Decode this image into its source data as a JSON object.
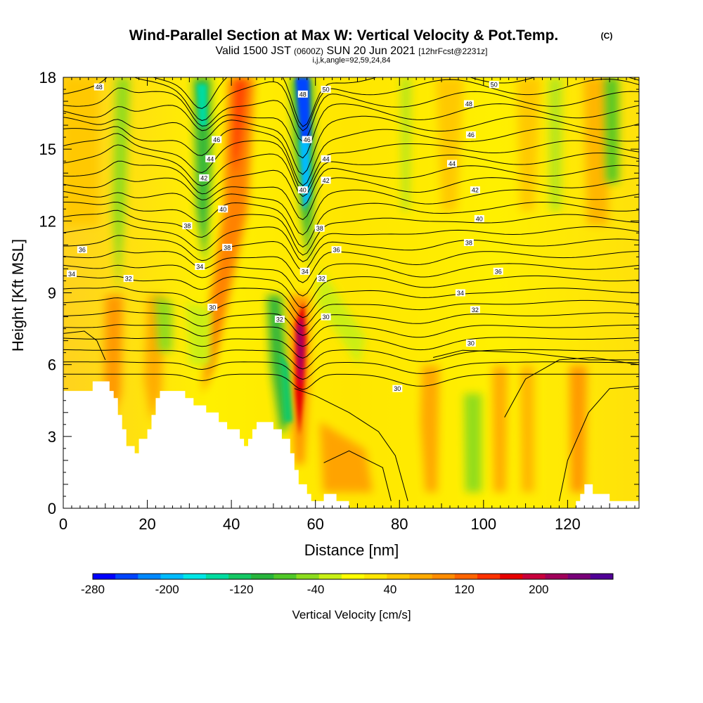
{
  "header": {
    "title": "Wind-Parallel Section at Max W: Vertical Velocity & Pot.Temp.",
    "title_tag": "(C)",
    "valid_prefix": "Valid 1500 JST",
    "valid_utc": "(0600Z)",
    "valid_date": "SUN 20 Jun 2021",
    "forecast": "[12hrFcst@2231z]",
    "indices": "i,j,k,angle=92,59,24,84"
  },
  "chart_data": {
    "type": "heatmap",
    "xlabel": "Distance [nm]",
    "ylabel": "Height [Kft MSL]",
    "xlim": [
      0,
      137
    ],
    "ylim": [
      0,
      18
    ],
    "x_ticks": [
      0,
      20,
      40,
      60,
      80,
      100,
      120
    ],
    "y_ticks": [
      0,
      3,
      6,
      9,
      12,
      15,
      18
    ],
    "colorbar": {
      "label": "Vertical Velocity [cm/s]",
      "min": -280,
      "max": 280,
      "tick_labels": [
        "-280",
        "-200",
        "-120",
        "-40",
        "40",
        "120",
        "200"
      ],
      "colors": [
        "#0000ff",
        "#0044ff",
        "#0088ff",
        "#00bbff",
        "#00e6e6",
        "#00dca0",
        "#14c864",
        "#28b43c",
        "#50c828",
        "#8cdc1e",
        "#c8f014",
        "#ffff00",
        "#ffe600",
        "#ffc800",
        "#ffaa00",
        "#ff8c00",
        "#ff6400",
        "#ff3200",
        "#e60000",
        "#c8003c",
        "#a0005a",
        "#780078",
        "#500096"
      ]
    },
    "terrain": [
      [
        0,
        4.9
      ],
      [
        7,
        4.9
      ],
      [
        7,
        5.3
      ],
      [
        11,
        5.3
      ],
      [
        11,
        4.9
      ],
      [
        12,
        4.9
      ],
      [
        12,
        4.6
      ],
      [
        13,
        4.6
      ],
      [
        13,
        3.9
      ],
      [
        14,
        3.9
      ],
      [
        14,
        3.3
      ],
      [
        15,
        3.3
      ],
      [
        15,
        2.6
      ],
      [
        17,
        2.6
      ],
      [
        17,
        2.3
      ],
      [
        18,
        2.3
      ],
      [
        18,
        2.9
      ],
      [
        20,
        2.9
      ],
      [
        20,
        3.3
      ],
      [
        21,
        3.3
      ],
      [
        21,
        3.9
      ],
      [
        22,
        3.9
      ],
      [
        22,
        4.6
      ],
      [
        23,
        4.6
      ],
      [
        23,
        4.9
      ],
      [
        29,
        4.9
      ],
      [
        29,
        4.6
      ],
      [
        31,
        4.6
      ],
      [
        31,
        4.3
      ],
      [
        34,
        4.3
      ],
      [
        34,
        4.0
      ],
      [
        37,
        4.0
      ],
      [
        37,
        3.6
      ],
      [
        39,
        3.6
      ],
      [
        39,
        3.3
      ],
      [
        42,
        3.3
      ],
      [
        42,
        2.9
      ],
      [
        43,
        2.9
      ],
      [
        43,
        2.6
      ],
      [
        44,
        2.6
      ],
      [
        44,
        2.9
      ],
      [
        45,
        2.9
      ],
      [
        45,
        3.3
      ],
      [
        46,
        3.3
      ],
      [
        46,
        3.6
      ],
      [
        50,
        3.6
      ],
      [
        50,
        3.3
      ],
      [
        52,
        3.3
      ],
      [
        52,
        2.9
      ],
      [
        54,
        2.9
      ],
      [
        54,
        2.3
      ],
      [
        55,
        2.3
      ],
      [
        55,
        1.6
      ],
      [
        56,
        1.6
      ],
      [
        56,
        1.0
      ],
      [
        58,
        1.0
      ],
      [
        58,
        0.6
      ],
      [
        59,
        0.6
      ],
      [
        59,
        0.3
      ],
      [
        62,
        0.3
      ],
      [
        62,
        0.6
      ],
      [
        65,
        0.6
      ],
      [
        65,
        0.3
      ],
      [
        68,
        0.3
      ],
      [
        68,
        0.0
      ],
      [
        70,
        0.0
      ],
      [
        70,
        -0.3
      ],
      [
        137,
        -0.3
      ],
      [
        137,
        0.3
      ],
      [
        130,
        0.3
      ],
      [
        130,
        0.6
      ],
      [
        126,
        0.6
      ],
      [
        126,
        1.0
      ],
      [
        124,
        1.0
      ],
      [
        124,
        0.6
      ],
      [
        123,
        0.6
      ],
      [
        123,
        0.3
      ],
      [
        122,
        0.3
      ],
      [
        122,
        -0.3
      ],
      [
        0,
        -0.3
      ]
    ],
    "contour_labels": [
      {
        "x": 8.5,
        "y": 17.6,
        "label": "48"
      },
      {
        "x": 36.5,
        "y": 15.4,
        "label": "46"
      },
      {
        "x": 35.0,
        "y": 14.6,
        "label": "44"
      },
      {
        "x": 33.5,
        "y": 13.8,
        "label": "42"
      },
      {
        "x": 38.0,
        "y": 12.5,
        "label": "40"
      },
      {
        "x": 29.5,
        "y": 11.8,
        "label": "38"
      },
      {
        "x": 4.5,
        "y": 10.8,
        "label": "36"
      },
      {
        "x": 39.0,
        "y": 10.9,
        "label": "38"
      },
      {
        "x": 2.0,
        "y": 9.8,
        "label": "34"
      },
      {
        "x": 15.5,
        "y": 9.6,
        "label": "32"
      },
      {
        "x": 32.5,
        "y": 10.1,
        "label": "34"
      },
      {
        "x": 35.5,
        "y": 8.4,
        "label": "30"
      },
      {
        "x": 57.0,
        "y": 17.3,
        "label": "48"
      },
      {
        "x": 62.5,
        "y": 17.5,
        "label": "50"
      },
      {
        "x": 58.0,
        "y": 15.4,
        "label": "46"
      },
      {
        "x": 62.5,
        "y": 14.6,
        "label": "44"
      },
      {
        "x": 62.5,
        "y": 13.7,
        "label": "42"
      },
      {
        "x": 57.0,
        "y": 13.3,
        "label": "40"
      },
      {
        "x": 61.0,
        "y": 11.7,
        "label": "38"
      },
      {
        "x": 65.0,
        "y": 10.8,
        "label": "36"
      },
      {
        "x": 57.5,
        "y": 9.9,
        "label": "34"
      },
      {
        "x": 61.5,
        "y": 9.6,
        "label": "32"
      },
      {
        "x": 51.5,
        "y": 7.9,
        "label": "32"
      },
      {
        "x": 62.5,
        "y": 8.0,
        "label": "30"
      },
      {
        "x": 102.5,
        "y": 17.7,
        "label": "50"
      },
      {
        "x": 96.5,
        "y": 16.9,
        "label": "48"
      },
      {
        "x": 97.0,
        "y": 15.6,
        "label": "46"
      },
      {
        "x": 92.5,
        "y": 14.4,
        "label": "44"
      },
      {
        "x": 98.0,
        "y": 13.3,
        "label": "42"
      },
      {
        "x": 99.0,
        "y": 12.1,
        "label": "40"
      },
      {
        "x": 96.5,
        "y": 11.1,
        "label": "38"
      },
      {
        "x": 103.5,
        "y": 9.9,
        "label": "36"
      },
      {
        "x": 94.5,
        "y": 9.0,
        "label": "34"
      },
      {
        "x": 98.0,
        "y": 8.3,
        "label": "32"
      },
      {
        "x": 97.0,
        "y": 6.9,
        "label": "30"
      },
      {
        "x": 79.5,
        "y": 5.0,
        "label": "30"
      }
    ]
  }
}
